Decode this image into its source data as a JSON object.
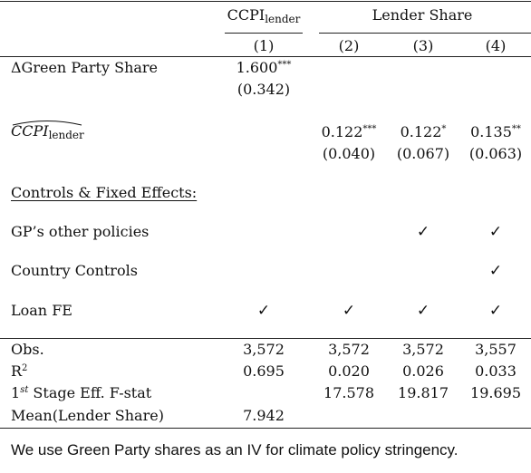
{
  "header": {
    "col1_group": "CCPI",
    "col1_group_sub": "lender",
    "cols24_group": "Lender Share",
    "col_nums": [
      "(1)",
      "(2)",
      "(3)",
      "(4)"
    ]
  },
  "rows": {
    "gp_share": {
      "label": "ΔGreen Party Share",
      "c1_value": "1.600",
      "c1_stars": "***",
      "c1_se": "(0.342)"
    },
    "ccpi_hat": {
      "label_main": "CCPI",
      "label_sub": "lender",
      "c2_value": "0.122",
      "c2_stars": "***",
      "c3_value": "0.122",
      "c3_stars": "*",
      "c4_value": "0.135",
      "c4_stars": "**",
      "c2_se": "(0.040)",
      "c3_se": "(0.067)",
      "c4_se": "(0.063)"
    },
    "controls_heading": "Controls & Fixed Effects:",
    "gp_other": {
      "label": "GP’s other policies",
      "checks": [
        "",
        "",
        "✓",
        "✓"
      ]
    },
    "country_controls": {
      "label": "Country Controls",
      "checks": [
        "",
        "",
        "",
        "✓"
      ]
    },
    "loan_fe": {
      "label": "Loan FE",
      "checks": [
        "✓",
        "✓",
        "✓",
        "✓"
      ]
    }
  },
  "stats": {
    "obs": {
      "label": "Obs.",
      "values": [
        "3,572",
        "3,572",
        "3,572",
        "3,557"
      ]
    },
    "r2": {
      "label_main": "R",
      "label_sup": "2",
      "values": [
        "0.695",
        "0.020",
        "0.026",
        "0.033"
      ]
    },
    "fstat": {
      "label_pre": "1",
      "label_sup": "st",
      "label_post": " Stage Eff. F-stat",
      "values": [
        "",
        "17.578",
        "19.817",
        "19.695"
      ]
    },
    "mean": {
      "label": "Mean(Lender Share)",
      "values": [
        "7.942",
        "",
        "",
        ""
      ]
    }
  },
  "caption": "We use Green Party shares as an IV for climate policy stringency."
}
